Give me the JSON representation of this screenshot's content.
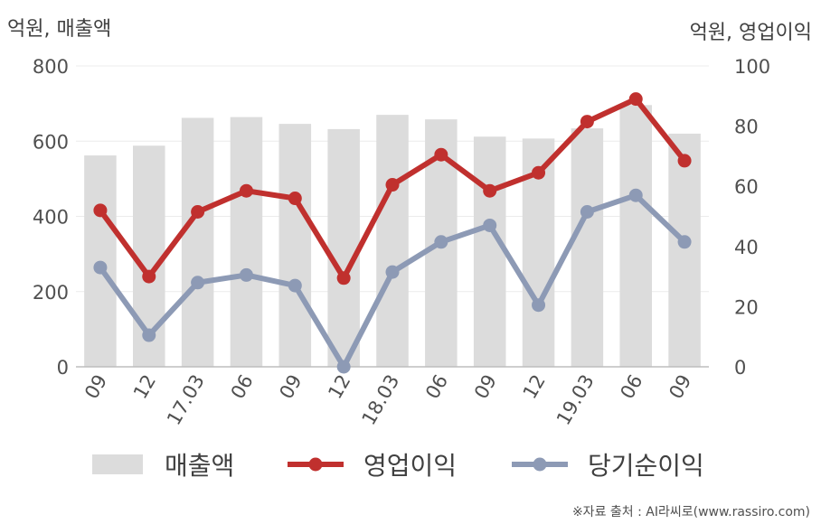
{
  "units": {
    "left": "억원, 매출액",
    "right": "억원, 영업이익"
  },
  "source": "※자료 출처 : AI라씨로(www.rassiro.com)",
  "chart_data": {
    "type": "bar+line",
    "categories": [
      "09",
      "12",
      "17.03",
      "06",
      "09",
      "12",
      "18.03",
      "06",
      "09",
      "12",
      "19.03",
      "06",
      "09"
    ],
    "left_axis": {
      "ylim": [
        0,
        800
      ],
      "ticks": [
        0,
        200,
        400,
        600,
        800
      ]
    },
    "right_axis": {
      "ylim": [
        0,
        100
      ],
      "ticks": [
        0,
        20,
        40,
        60,
        80,
        100
      ]
    },
    "series": [
      {
        "name": "매출액",
        "type": "bar",
        "axis": "left",
        "color": "#dcdcdc",
        "values": [
          562,
          588,
          662,
          664,
          646,
          632,
          670,
          658,
          612,
          607,
          634,
          696,
          620
        ]
      },
      {
        "name": "영업이익",
        "type": "line",
        "axis": "right",
        "color": "#c0302e",
        "values": [
          52,
          30,
          51.5,
          58.5,
          56,
          29.5,
          60.5,
          70.5,
          58.5,
          64.5,
          81.5,
          89,
          68.5
        ]
      },
      {
        "name": "당기순이익",
        "type": "line",
        "axis": "right",
        "color": "#8d9ab5",
        "values": [
          33,
          10.5,
          28,
          30.5,
          27,
          0,
          31.5,
          41.5,
          47,
          20.5,
          51.5,
          57,
          41.5
        ]
      }
    ],
    "grid": true,
    "legend": "bottom"
  }
}
